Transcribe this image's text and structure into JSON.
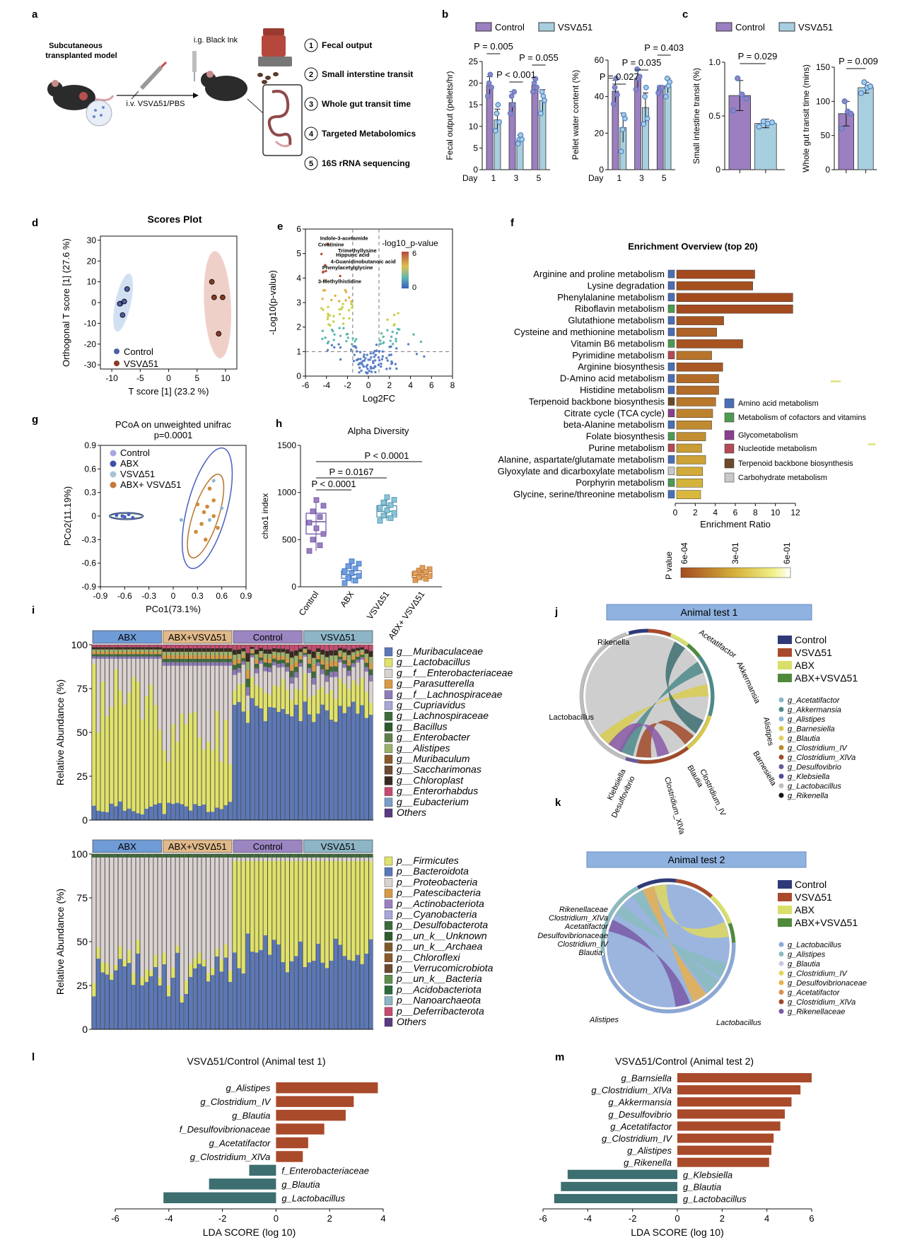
{
  "figure": {
    "panels": {
      "a": {
        "letter": "a",
        "model_title_line1": "Subcutaneous",
        "model_title_line2": "transplanted model",
        "injection_label": "i.v. VSVΔ51/PBS",
        "gavage_label": "i.g. Black Ink",
        "steps": [
          {
            "num": "1",
            "label": "Fecal output"
          },
          {
            "num": "2",
            "label": "Small interstine transit"
          },
          {
            "num": "3",
            "label": "Whole gut transit time"
          },
          {
            "num": "4",
            "label": "Targeted Metabolomics"
          },
          {
            "num": "5",
            "label": "16S rRNA sequencing"
          }
        ]
      },
      "b": {
        "letter": "b",
        "legend": [
          "Control",
          "VSVΔ51"
        ]
      },
      "c": {
        "letter": "c",
        "legend": [
          "Control",
          "VSVΔ51"
        ]
      },
      "d": {
        "letter": "d"
      },
      "e": {
        "letter": "e"
      },
      "f": {
        "letter": "f"
      },
      "g": {
        "letter": "g"
      },
      "h": {
        "letter": "h"
      },
      "i": {
        "letter": "i"
      },
      "j": {
        "letter": "j"
      },
      "k": {
        "letter": "k"
      },
      "l": {
        "letter": "l"
      },
      "m": {
        "letter": "m"
      }
    },
    "colors": {
      "control": "#9B7FC0",
      "vsv": "#A8CFE0",
      "dot_blue": "#4F7FC8",
      "brown": "#A94A2A",
      "teal": "#3D6E70",
      "abx_header": "#6F9BD6",
      "abxvsv_header": "#E0B98A",
      "control_header": "#9C86C2",
      "vsv_header": "#8DB5C6"
    }
  },
  "chart_data": [
    {
      "id": "b1",
      "type": "bar",
      "ylabel": "Fecal output (pellets/hr)",
      "xlabel_prefix": "Day",
      "categories": [
        "1",
        "3",
        "5"
      ],
      "ylim": [
        0,
        25
      ],
      "yticks": [
        "0",
        "5",
        "10",
        "15",
        "20",
        "25"
      ],
      "series": [
        {
          "name": "Control",
          "values": [
            19.5,
            15.5,
            19.5
          ],
          "errors": [
            2.0,
            2.5,
            1.5
          ],
          "points": [
            [
              17,
              20,
              22,
              19
            ],
            [
              13,
              17,
              15,
              18
            ],
            [
              18,
              20,
              21,
              19
            ]
          ]
        },
        {
          "name": "VSVΔ51",
          "values": [
            11.5,
            7.0,
            16.0
          ],
          "errors": [
            2.5,
            1.0,
            2.5
          ],
          "points": [
            [
              9,
              13,
              15,
              11
            ],
            [
              6,
              7,
              8,
              7
            ],
            [
              13,
              18,
              17,
              16
            ]
          ]
        }
      ],
      "annotations": [
        {
          "text": "P = 0.005"
        },
        {
          "text": "P < 0.001"
        },
        {
          "text": "P = 0.055"
        }
      ]
    },
    {
      "id": "b2",
      "type": "bar",
      "ylabel": "Pellet water content (%)",
      "xlabel_prefix": "Day",
      "categories": [
        "1",
        "3",
        "5"
      ],
      "ylim": [
        0,
        60
      ],
      "yticks": [
        "0",
        "20",
        "40",
        "60"
      ],
      "series": [
        {
          "name": "Control",
          "values": [
            43,
            50,
            44
          ],
          "errors": [
            6,
            5,
            2
          ],
          "points": [
            [
              36,
              45,
              50,
              41
            ],
            [
              44,
              55,
              50,
              51
            ],
            [
              42,
              45,
              44,
              45
            ]
          ]
        },
        {
          "name": "VSVΔ51",
          "values": [
            23,
            34,
            46
          ],
          "errors": [
            8,
            8,
            4
          ],
          "points": [
            [
              10,
              22,
              30,
              28
            ],
            [
              25,
              40,
              45,
              28
            ],
            [
              40,
              50,
              46,
              48
            ]
          ]
        }
      ],
      "annotations": [
        {
          "text": "P = 0.027"
        },
        {
          "text": "P = 0.035"
        },
        {
          "text": "P = 0.403"
        }
      ]
    },
    {
      "id": "c1",
      "type": "bar",
      "ylabel": "Small intestine transit (%)",
      "categories": [
        "Control",
        "VSVΔ51"
      ],
      "ylim": [
        0,
        1.0
      ],
      "yticks": [
        "0",
        "0.5",
        "1.0"
      ],
      "series": [
        {
          "name": "values",
          "values": [
            0.69,
            0.43
          ],
          "errors": [
            0.14,
            0.04
          ],
          "points": [
            [
              0.55,
              0.85,
              0.7,
              0.66
            ],
            [
              0.4,
              0.45,
              0.43,
              0.44
            ]
          ]
        }
      ],
      "annotations": [
        {
          "text": "P = 0.029"
        }
      ]
    },
    {
      "id": "c2",
      "type": "bar",
      "ylabel": "Whole gut transit time (mins)",
      "categories": [
        "Control",
        "VSVΔ51"
      ],
      "ylim": [
        0,
        150
      ],
      "yticks": [
        "0",
        "50",
        "100",
        "150"
      ],
      "series": [
        {
          "name": "values",
          "values": [
            82,
            120
          ],
          "errors": [
            18,
            8
          ],
          "points": [
            [
              60,
              100,
              85,
              82
            ],
            [
              112,
              128,
              120,
              122
            ]
          ]
        }
      ],
      "annotations": [
        {
          "text": "P = 0.009"
        }
      ]
    },
    {
      "id": "d",
      "type": "scatter",
      "title": "Scores Plot",
      "xlabel": "T score [1] (23.2 %)",
      "ylabel": "Orthogonal T score [1] (27.6 %)",
      "xlim": [
        -12,
        12
      ],
      "ylim": [
        -32,
        32
      ],
      "xticks": [
        "-10",
        "-5",
        "0",
        "5",
        "10"
      ],
      "yticks": [
        "-30",
        "-20",
        "-10",
        "0",
        "10",
        "20",
        "30"
      ],
      "series": [
        {
          "name": "Control",
          "x": [
            -8.5,
            -7.3,
            -7.8,
            -8.6,
            -8.1
          ],
          "y": [
            -0.5,
            6.5,
            0.5,
            -0.6,
            -6.0
          ]
        },
        {
          "name": "VSVΔ51",
          "x": [
            7.6,
            8.0,
            9.5,
            8.8
          ],
          "y": [
            10,
            2.5,
            2.5,
            -15
          ]
        }
      ]
    },
    {
      "id": "e",
      "type": "scatter",
      "subtype": "volcano",
      "xlabel": "Log2FC",
      "ylabel": "-Log10(p-value)",
      "colorbar_title": "-log10_p-value",
      "colorbar_ticks": [
        "6",
        "0"
      ],
      "xlim": [
        -6,
        8
      ],
      "ylim": [
        0,
        6
      ],
      "xticks": [
        "-6",
        "-4",
        "-2",
        "0",
        "2",
        "4",
        "6",
        "8"
      ],
      "yticks": [
        "0",
        "1",
        "2",
        "3",
        "4",
        "5",
        "6"
      ],
      "labels": [
        "Indole-3-acetamide",
        "Creatinine",
        "Trimethyllysine",
        "Hippuric acid",
        "4-Guanidinobutanoic acid",
        "Phenylacetylglycine",
        "3-Methylhistidine"
      ]
    },
    {
      "id": "f",
      "type": "bar",
      "orientation": "horizontal",
      "title": "Enrichment Overview (top 20)",
      "xlabel": "Enrichment Ratio",
      "xlim": [
        0,
        12
      ],
      "xticks": [
        "0",
        "2",
        "4",
        "6",
        "8",
        "10",
        "12"
      ],
      "categories": [
        "Arginine and proline metabolism",
        "Lysine degradation",
        "Phenylalanine metabolism",
        "Riboflavin metabolism",
        "Glutathione metabolism",
        "Cysteine and methionine metabolism",
        "Vitamin B6 metabolism",
        "Pyrimidine metabolism",
        "Arginine biosynthesis",
        "D-Amino acid metabolism",
        "Histidine metabolism",
        "Terpenoid backbone biosynthesis",
        "Citrate cycle (TCA cycle)",
        "beta-Alanine metabolism",
        "Folate biosynthesis",
        "Purine metabolism",
        "Alanine, aspartate/glutamate metabolism",
        "Glyoxylate and dicarboxylate metabolism",
        "Porphyrin metabolism",
        "Glycine, serine/threonine metabolism"
      ],
      "values": [
        7.8,
        7.6,
        11.6,
        11.6,
        4.7,
        4.0,
        6.6,
        3.5,
        4.6,
        4.2,
        4.2,
        3.9,
        3.6,
        3.5,
        2.9,
        2.5,
        2.9,
        2.6,
        2.6,
        2.4
      ],
      "class_index": [
        0,
        0,
        0,
        1,
        0,
        0,
        1,
        3,
        0,
        0,
        0,
        4,
        2,
        0,
        1,
        3,
        0,
        5,
        1,
        0
      ],
      "pvalue_color": [
        "#A44A1F",
        "#A5501F",
        "#A44A1F",
        "#A44A1F",
        "#A65522",
        "#AE6226",
        "#A75421",
        "#B7752B",
        "#A95A24",
        "#B26B28",
        "#B36D29",
        "#B8772B",
        "#BD822E",
        "#C08A30",
        "#C28F32",
        "#C99C35",
        "#CDA236",
        "#D1AA39",
        "#D5B23B",
        "#DAB83D"
      ],
      "legend": [
        "Amino acid metabolism",
        "Metabolism of cofactors and vitamins",
        "Glycometabolism",
        "Nucleotide metabolism",
        "Terpenoid backbone biosynthesis",
        "Carbohydrate metabolism"
      ],
      "legend_colors": [
        "#4A6FB5",
        "#4E9A53",
        "#8A3F8F",
        "#B34A55",
        "#6B4A2A",
        "#C8C8C8"
      ],
      "colorbar_title": "P value",
      "colorbar_ticks": [
        "6e-04",
        "3e-01",
        "6e-01"
      ]
    },
    {
      "id": "g",
      "type": "scatter",
      "title": "PCoA on unweighted unifrac",
      "subtitle": "p=0.0001",
      "xlabel": "PCo1(73.1%)",
      "ylabel": "PCo2(11.19%)",
      "xlim": [
        -0.9,
        0.9
      ],
      "ylim": [
        -0.9,
        0.9
      ],
      "xticks": [
        "-0.9",
        "-0.6",
        "-0.3",
        "0",
        "0.3",
        "0.6",
        "0.9"
      ],
      "yticks": [
        "-0.9",
        "-0.6",
        "-0.3",
        "0",
        "0.3",
        "0.6",
        "0.9"
      ],
      "legend": [
        "Control",
        "ABX",
        "VSVΔ51",
        "ABX+ VSVΔ51"
      ]
    },
    {
      "id": "h",
      "type": "box",
      "title": "Alpha Diversity",
      "ylabel": "chao1 index",
      "categories": [
        "Control",
        "ABX",
        "VSVΔ51",
        "ABX+ VSVΔ51"
      ],
      "ylim": [
        0,
        1500
      ],
      "yticks": [
        "0",
        "500",
        "1000",
        "1500"
      ],
      "medians": [
        690,
        130,
        800,
        130
      ],
      "q1": [
        560,
        90,
        740,
        100
      ],
      "q3": [
        780,
        170,
        860,
        160
      ],
      "whisker_low": [
        380,
        40,
        700,
        70
      ],
      "whisker_high": [
        920,
        270,
        950,
        200
      ],
      "annotations": [
        {
          "text": "P < 0.0001"
        },
        {
          "text": "P = 0.0167"
        },
        {
          "text": "P < 0.0001"
        }
      ]
    },
    {
      "id": "i1",
      "type": "bar",
      "subtype": "stacked",
      "ylabel": "Relative Abundance (%)",
      "groups": [
        "ABX",
        "ABX+VSVΔ51",
        "Control",
        "VSVΔ51"
      ],
      "yticks": [
        "0",
        "25",
        "50",
        "75",
        "100"
      ],
      "legend": [
        "g__Muribaculaceae",
        "g__Lactobacillus",
        "g__f__Enterobacteriaceae",
        "g__Parasutterella",
        "g__f__Lachnospiraceae",
        "g__Cupriavidus",
        "g__Lachnospiraceae",
        "g__Bacillus",
        "g__Enterobacter",
        "g__Alistipes",
        "g__Muribaculum",
        "g__Saccharimonas",
        "g__Chloroplast",
        "g__Enterorhabdus",
        "g__Eubacterium",
        "Others"
      ],
      "legend_colors": [
        "#5B78B8",
        "#E0E26A",
        "#D9D2D0",
        "#D89A45",
        "#8E7BB8",
        "#A8A6D8",
        "#3E6B3A",
        "#2E5A2C",
        "#5E7F4A",
        "#9BB26A",
        "#8A5A2A",
        "#6B4A30",
        "#3A2A20",
        "#C84A70",
        "#7A9FC8",
        "#5A3A80"
      ]
    },
    {
      "id": "i2",
      "type": "bar",
      "subtype": "stacked",
      "ylabel": "Relative Abundance (%)",
      "groups": [
        "ABX",
        "ABX+VSVΔ51",
        "Control",
        "VSVΔ51"
      ],
      "yticks": [
        "0",
        "25",
        "50",
        "75",
        "100"
      ],
      "legend": [
        "p__Firmicutes",
        "p__Bacteroidota",
        "p__Proteobacteria",
        "p__Patescibacteria",
        "p__Actinobacteriota",
        "p__Cyanobacteria",
        "p__Desulfobacterota",
        "p__un_k__Unknown",
        "p__un_k__Archaea",
        "p__Chloroflexi",
        "p__Verrucomicrobiota",
        "p__un_k__Bacteria",
        "p__Acidobacteriota",
        "p__Nanoarchaeota",
        "p__Deferribacterota",
        "Others"
      ],
      "legend_colors": [
        "#E0E26A",
        "#5B78B8",
        "#D9D2D0",
        "#D89A45",
        "#9B7FC0",
        "#A8A6D8",
        "#3E6B3A",
        "#2E5A2C",
        "#7E5A2A",
        "#8A5A2A",
        "#6B4A30",
        "#5E8F4A",
        "#2E6A3A",
        "#8DB5C6",
        "#C84A70",
        "#5A3A80"
      ]
    },
    {
      "id": "j",
      "type": "chord",
      "title": "Animal test 1",
      "legend_groups": [
        "Control",
        "VSVΔ51",
        "ABX",
        "ABX+VSVΔ51"
      ],
      "legend_group_colors": [
        "#2E3A78",
        "#A94A2A",
        "#D8E06A",
        "#4E8A3A"
      ],
      "legend_taxa": [
        "g_Acetatifactor",
        "g_Akkermansia",
        "g_Alistipes",
        "g_Barnesiella",
        "g_Blautia",
        "g_Clostridium_IV",
        "g_Clostridium_XlVa",
        "g_Desulfovibrio",
        "g_Klebsiella",
        "g_Lactobacillus",
        "g_Rikenella"
      ],
      "legend_taxa_colors": [
        "#8AB4C8",
        "#4E8A8A",
        "#8AB8D0",
        "#D8C84A",
        "#E0D060",
        "#B88A2A",
        "#A04A2A",
        "#6A5A9A",
        "#4A4A9A",
        "#BEBEBE",
        "#111111"
      ],
      "segment_labels": [
        "Rikenella",
        "Acetatifactor",
        "Akkermansia",
        "Alistipes",
        "Barnesiella",
        "Clostridium_IV",
        "Blautia",
        "Clostridium_XlVa",
        "Desulfovibrio",
        "Klebsiella",
        "Lactobacillus"
      ]
    },
    {
      "id": "k",
      "type": "chord",
      "title": "Animal test 2",
      "legend_groups": [
        "Control",
        "VSVΔ51",
        "ABX",
        "ABX+VSVΔ51"
      ],
      "legend_group_colors": [
        "#2E3A78",
        "#A94A2A",
        "#D8E06A",
        "#4E8A3A"
      ],
      "legend_taxa": [
        "g_Lactobacillus",
        "g_Alistipes",
        "g_Blautia",
        "g_Clostridium_IV",
        "g_Desulfovibrionaceae",
        "g_Acetatifactor",
        "g_Clostridium_XlVa",
        "g_Rikenellaceae"
      ],
      "legend_taxa_colors": [
        "#8AA8D8",
        "#8ABCC0",
        "#C8C8E0",
        "#E0D860",
        "#E8B050",
        "#D89050",
        "#A04A2A",
        "#7A5AA8"
      ],
      "segment_labels": [
        "Rikenellaceae",
        "Clostridium_XlVa",
        "Acetatifactor",
        "Desulfovibrionaceae",
        "Clostridium_IV",
        "Blautia",
        "Alistipes",
        "Lactobacillus"
      ]
    },
    {
      "id": "l",
      "type": "bar",
      "orientation": "horizontal",
      "title": "VSVΔ51/Control (Animal test 1)",
      "xlabel": "LDA SCORE (log 10)",
      "xlim": [
        -6,
        4
      ],
      "xticks": [
        "-6",
        "-4",
        "-2",
        "0",
        "2",
        "4"
      ],
      "categories": [
        "g_Alistipes",
        "g_Clostridium_IV",
        "g_Blautia",
        "f_Desulfovibrionaceae",
        "g_Acetatifactor",
        "g_Clostridium_XlVa",
        "f_Enterobacteriaceae",
        "g_Blautia",
        "g_Lactobacillus"
      ],
      "values": [
        3.8,
        2.9,
        2.6,
        1.8,
        1.2,
        1.0,
        -1.0,
        -2.5,
        -4.2
      ]
    },
    {
      "id": "m",
      "type": "bar",
      "orientation": "horizontal",
      "title": "VSVΔ51/Control (Animal test 2)",
      "xlabel": "LDA SCORE (log 10)",
      "xlim": [
        -6,
        6
      ],
      "xticks": [
        "-6",
        "-4",
        "-2",
        "0",
        "2",
        "4",
        "6"
      ],
      "categories": [
        "g_Barnsiella",
        "g_Clostridium_XlVa",
        "g_Akkermansia",
        "g_Desulfovibrio",
        "g_Acetatifactor",
        "g_Clostridium_IV",
        "g_Alistipes",
        "g_Rikenella",
        "g_Klebsiella",
        "g_Blautia",
        "g_Lactobacillus"
      ],
      "values": [
        6.0,
        5.5,
        5.1,
        4.8,
        4.6,
        4.3,
        4.2,
        4.1,
        -4.9,
        -5.2,
        -5.5
      ]
    }
  ]
}
